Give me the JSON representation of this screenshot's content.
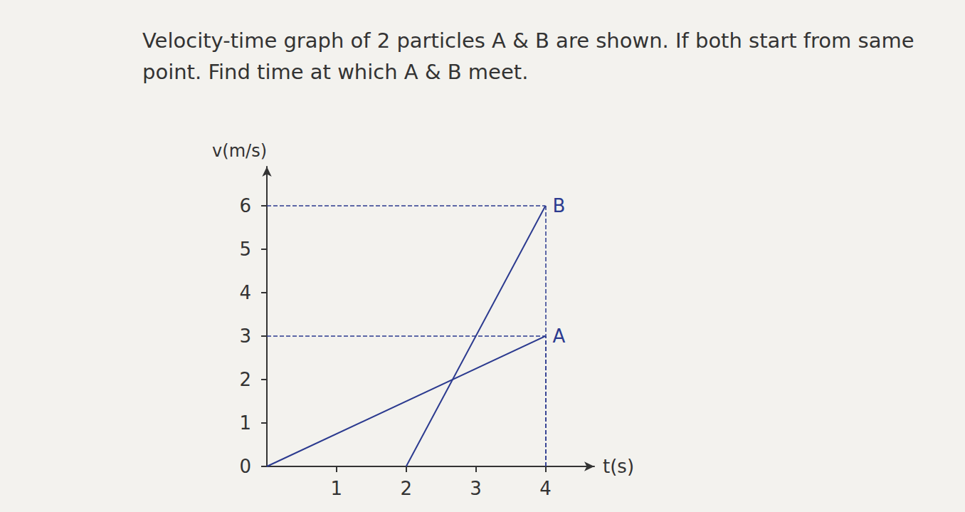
{
  "chart_data": {
    "type": "line",
    "title": "Velocity-time graph of 2 particles A & B are shown. If both start from same point. Find time at which A & B meet.",
    "x_label": "t(s)",
    "y_label": "v(m/s)",
    "xlim": [
      0,
      4.7
    ],
    "xticks": [
      1,
      2,
      3,
      4
    ],
    "ylim": [
      0,
      6.9
    ],
    "yticks": [
      0,
      1,
      2,
      3,
      4,
      5,
      6
    ],
    "grid": false,
    "series": [
      {
        "name": "A",
        "color": "#2b3a8f",
        "x": [
          0,
          4
        ],
        "values": [
          0,
          3
        ]
      },
      {
        "name": "B",
        "color": "#2b3a8f",
        "x": [
          2,
          4
        ],
        "values": [
          0,
          6
        ]
      }
    ]
  }
}
